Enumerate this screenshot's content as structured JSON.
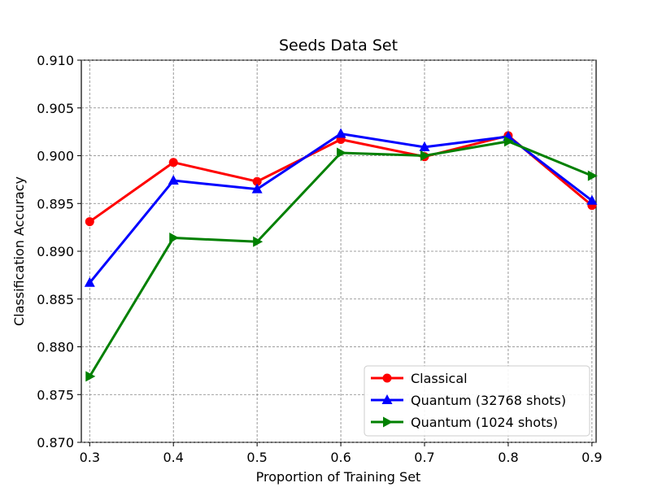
{
  "chart_data": {
    "type": "line",
    "title": "Seeds Data Set",
    "xlabel": "Proportion of Training Set",
    "ylabel": "Classification Accuracy",
    "x": [
      0.3,
      0.4,
      0.5,
      0.6,
      0.7,
      0.8,
      0.9
    ],
    "x_tick_labels": [
      "0.3",
      "0.4",
      "0.5",
      "0.6",
      "0.7",
      "0.8",
      "0.9"
    ],
    "y_tick_labels": [
      "0.870",
      "0.875",
      "0.880",
      "0.885",
      "0.890",
      "0.895",
      "0.900",
      "0.905",
      "0.910"
    ],
    "xlim": [
      0.29,
      0.905
    ],
    "ylim": [
      0.87,
      0.91
    ],
    "grid": true,
    "legend_position": "lower-right",
    "series": [
      {
        "name": "Classical",
        "color": "#ff0000",
        "marker": "circle",
        "values": [
          0.8931,
          0.8993,
          0.8973,
          0.9017,
          0.8999,
          0.9021,
          0.8948
        ]
      },
      {
        "name": "Quantum (32768 shots)",
        "color": "#0000ff",
        "marker": "triangle-up",
        "values": [
          0.8867,
          0.8974,
          0.8965,
          0.9023,
          0.9009,
          0.902,
          0.8953
        ]
      },
      {
        "name": "Quantum (1024 shots)",
        "color": "#008000",
        "marker": "triangle-right",
        "values": [
          0.8769,
          0.8914,
          0.891,
          0.9003,
          0.9,
          0.9015,
          0.8979
        ]
      }
    ]
  }
}
